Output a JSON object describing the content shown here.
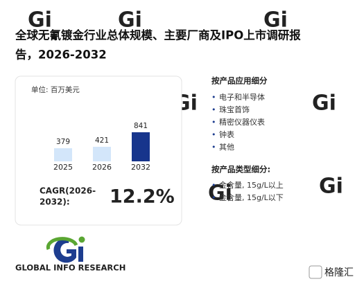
{
  "header": {
    "title_lines": [
      "全球无氰镀金行业总体规模、主要厂商及IPO上市调研报",
      "告，2026-2032"
    ]
  },
  "chart_data": {
    "type": "bar",
    "unit_label": "单位: 百万美元",
    "categories": [
      "2025",
      "2026",
      "2032"
    ],
    "values": [
      379,
      421,
      841
    ],
    "colors": [
      "#d3e6fa",
      "#d3e6fa",
      "#17358c"
    ]
  },
  "cagr": {
    "label_lines": [
      "CAGR(2026-",
      "2032):"
    ],
    "value": "12.2%"
  },
  "segments": [
    {
      "title": "按产品应用细分",
      "items": [
        "电子和半导体",
        "珠宝首饰",
        "精密仪器仪表",
        "钟表",
        "其他"
      ]
    },
    {
      "title": "按产品类型细分:",
      "items": [
        "金含量, 15g/L以上",
        "金含量, 15g/L以下"
      ]
    }
  ],
  "logo": {
    "text": "GLOBAL INFO RESEARCH"
  },
  "watermark": {
    "text": "格隆汇"
  }
}
